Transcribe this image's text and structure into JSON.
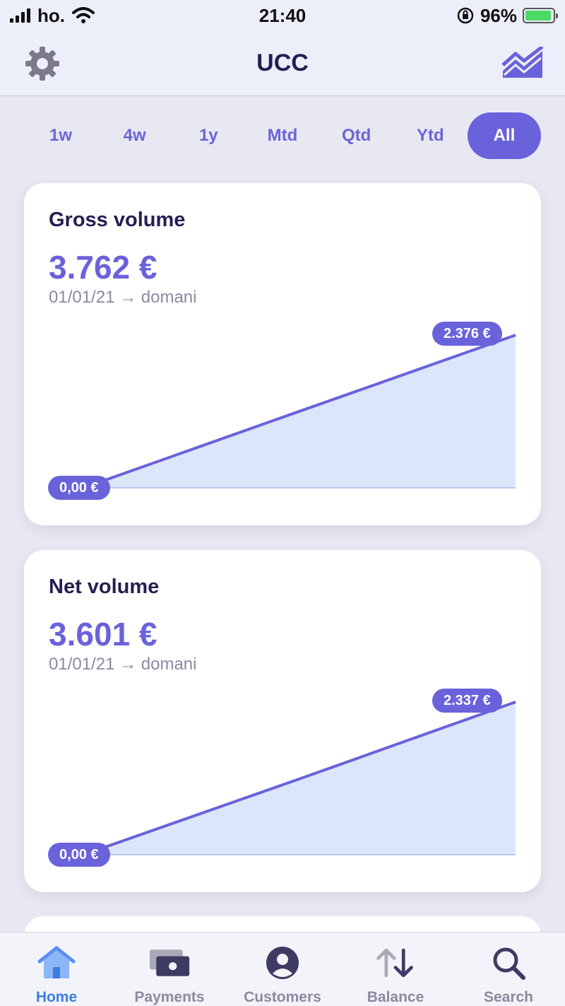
{
  "status_bar": {
    "carrier": "ho.",
    "time": "21:40",
    "battery": "96%",
    "battery_level": 0.96
  },
  "header": {
    "title": "UCC",
    "left_icon": "gear-icon",
    "right_icon": "trending-chart-icon"
  },
  "tabs": [
    {
      "label": "1w",
      "active": false
    },
    {
      "label": "4w",
      "active": false
    },
    {
      "label": "1y",
      "active": false
    },
    {
      "label": "Mtd",
      "active": false
    },
    {
      "label": "Qtd",
      "active": false
    },
    {
      "label": "Ytd",
      "active": false
    },
    {
      "label": "All",
      "active": true
    }
  ],
  "cards": [
    {
      "title": "Gross volume",
      "value": "3.762 €",
      "range": "01/01/21 → domani",
      "start_label": "0,00 €",
      "end_label": "2.376 €"
    },
    {
      "title": "Net volume",
      "value": "3.601 €",
      "range": "01/01/21 → domani",
      "start_label": "0,00 €",
      "end_label": "2.337 €"
    }
  ],
  "chart_data": [
    {
      "type": "area",
      "title": "Gross volume",
      "x": [
        0,
        1,
        2
      ],
      "values": [
        0,
        1190,
        2376
      ],
      "ylim": [
        0,
        2376
      ],
      "grid": false,
      "legend": "none",
      "color": "#6a62db",
      "fill": "#dbe6fb"
    },
    {
      "type": "area",
      "title": "Net volume",
      "x": [
        0,
        1,
        2
      ],
      "values": [
        0,
        1160,
        2337
      ],
      "ylim": [
        0,
        2337
      ],
      "grid": false,
      "legend": "none",
      "color": "#6a62db",
      "fill": "#dbe6fb"
    }
  ],
  "nav": [
    {
      "label": "Home",
      "icon": "home-icon",
      "active": true
    },
    {
      "label": "Payments",
      "icon": "payments-icon",
      "active": false
    },
    {
      "label": "Customers",
      "icon": "customers-icon",
      "active": false
    },
    {
      "label": "Balance",
      "icon": "balance-arrows-icon",
      "active": false
    },
    {
      "label": "Search",
      "icon": "search-icon",
      "active": false
    }
  ],
  "colors": {
    "accent": "#6a62db",
    "title": "#241f52",
    "active_nav": "#3a7fe0",
    "area_fill": "#dbe6fb"
  }
}
